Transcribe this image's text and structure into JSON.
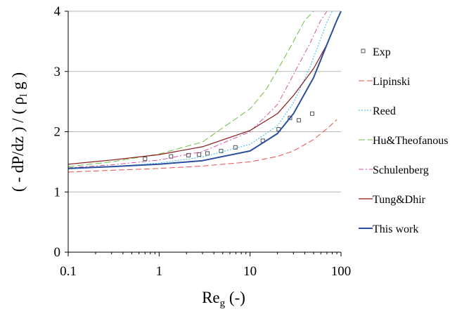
{
  "chart_data": {
    "type": "line",
    "xscale": "log",
    "xlim": [
      0.1,
      100
    ],
    "ylim": [
      0,
      4
    ],
    "grid": "horizontal",
    "legend_position": "right",
    "xlabel": {
      "main": "Re",
      "sub": "g",
      "tail": " (-)"
    },
    "ylabel": {
      "head": "( - dP/dz ) / ( ρ",
      "sub": "l",
      "tail": " g )"
    },
    "x_ticks": [
      "0.1",
      "1",
      "10",
      "100"
    ],
    "y_ticks": [
      "0",
      "1",
      "2",
      "3",
      "4"
    ],
    "series": [
      {
        "name": "Exp",
        "kind": "points",
        "marker": "square-open",
        "color": "#555555",
        "x": [
          0.7,
          1.35,
          2.1,
          2.75,
          3.4,
          4.8,
          6.9,
          13.8,
          20.6,
          27.5,
          34.4,
          48.2
        ],
        "y": [
          1.55,
          1.59,
          1.61,
          1.62,
          1.64,
          1.68,
          1.74,
          1.85,
          2.04,
          2.23,
          2.19,
          2.3
        ]
      },
      {
        "name": "Lipinski",
        "kind": "line",
        "color": "#e8504a",
        "dash": "8,4",
        "width": 1,
        "x": [
          0.1,
          0.3,
          1,
          3,
          10,
          20,
          30,
          50,
          70,
          90
        ],
        "y": [
          1.33,
          1.36,
          1.39,
          1.43,
          1.5,
          1.59,
          1.68,
          1.87,
          2.05,
          2.2
        ]
      },
      {
        "name": "Reed",
        "kind": "line",
        "color": "#33bde6",
        "dash": "2,2",
        "width": 1,
        "x": [
          0.1,
          0.3,
          1,
          3,
          10,
          20,
          30,
          45,
          60,
          70,
          80
        ],
        "y": [
          1.38,
          1.42,
          1.48,
          1.58,
          1.79,
          2.1,
          2.48,
          3.05,
          3.55,
          3.82,
          4.0
        ]
      },
      {
        "name": "Hu&Theofanous",
        "kind": "line",
        "color": "#6cbf3f",
        "dash": "9,4",
        "width": 1,
        "x": [
          0.1,
          0.3,
          1,
          3,
          10,
          15,
          20,
          30,
          40,
          50
        ],
        "y": [
          1.42,
          1.5,
          1.63,
          1.83,
          2.38,
          2.7,
          3.02,
          3.5,
          3.85,
          4.0
        ]
      },
      {
        "name": "Schulenberg",
        "kind": "line",
        "color": "#d1529f",
        "dash": "7,3,2,3",
        "width": 1,
        "x": [
          0.1,
          0.3,
          1,
          3,
          10,
          20,
          30,
          45,
          60,
          70
        ],
        "y": [
          1.4,
          1.45,
          1.53,
          1.67,
          2.0,
          2.45,
          2.95,
          3.45,
          3.85,
          4.0
        ]
      },
      {
        "name": "Tung&Dhir",
        "kind": "line",
        "color": "#8a1818",
        "dash": "",
        "width": 1.2,
        "x": [
          0.1,
          0.3,
          1,
          3,
          10,
          20,
          30,
          50,
          70,
          90,
          100
        ],
        "y": [
          1.46,
          1.53,
          1.62,
          1.75,
          2.02,
          2.3,
          2.6,
          3.05,
          3.45,
          3.85,
          4.0
        ]
      },
      {
        "name": "This work",
        "kind": "line",
        "color": "#2b4f9e",
        "dash": "",
        "width": 2,
        "x": [
          0.1,
          0.3,
          1,
          3,
          10,
          20,
          30,
          50,
          70,
          90,
          100
        ],
        "y": [
          1.39,
          1.42,
          1.46,
          1.52,
          1.68,
          1.97,
          2.3,
          2.9,
          3.45,
          3.85,
          4.0
        ]
      }
    ]
  }
}
